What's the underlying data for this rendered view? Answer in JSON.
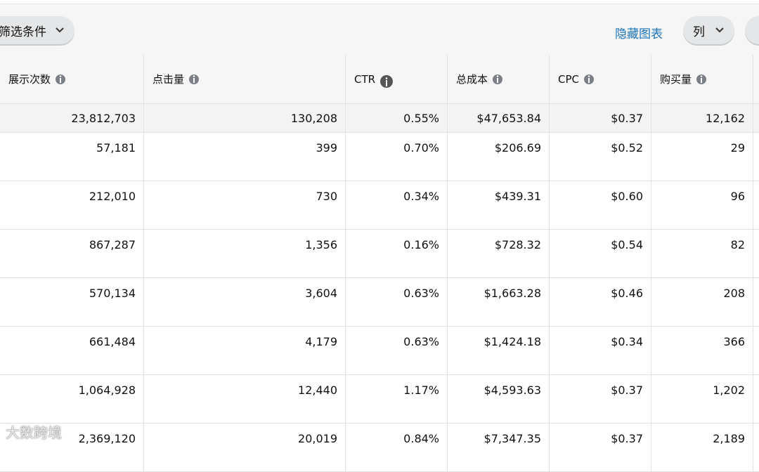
{
  "toolbar": {
    "filter_button": "筛选条件",
    "hide_chart_link": "隐藏图表",
    "columns_button": "列"
  },
  "table": {
    "headers": [
      "展示次数",
      "点击量",
      "CTR",
      "总成本",
      "CPC",
      "购买量"
    ],
    "summary": [
      "23,812,703",
      "130,208",
      "0.55%",
      "$47,653.84",
      "$0.37",
      "12,162"
    ],
    "rows": [
      [
        "57,181",
        "399",
        "0.70%",
        "$206.69",
        "$0.52",
        "29"
      ],
      [
        "212,010",
        "730",
        "0.34%",
        "$439.31",
        "$0.60",
        "96"
      ],
      [
        "867,287",
        "1,356",
        "0.16%",
        "$728.32",
        "$0.54",
        "82"
      ],
      [
        "570,134",
        "3,604",
        "0.63%",
        "$1,663.28",
        "$0.46",
        "208"
      ],
      [
        "661,484",
        "4,179",
        "0.63%",
        "$1,424.18",
        "$0.34",
        "366"
      ],
      [
        "1,064,928",
        "12,440",
        "1.17%",
        "$4,593.63",
        "$0.37",
        "1,202"
      ],
      [
        "2,369,120",
        "20,019",
        "0.84%",
        "$7,347.35",
        "$0.37",
        "2,189"
      ]
    ]
  },
  "watermark": "大数跨境"
}
